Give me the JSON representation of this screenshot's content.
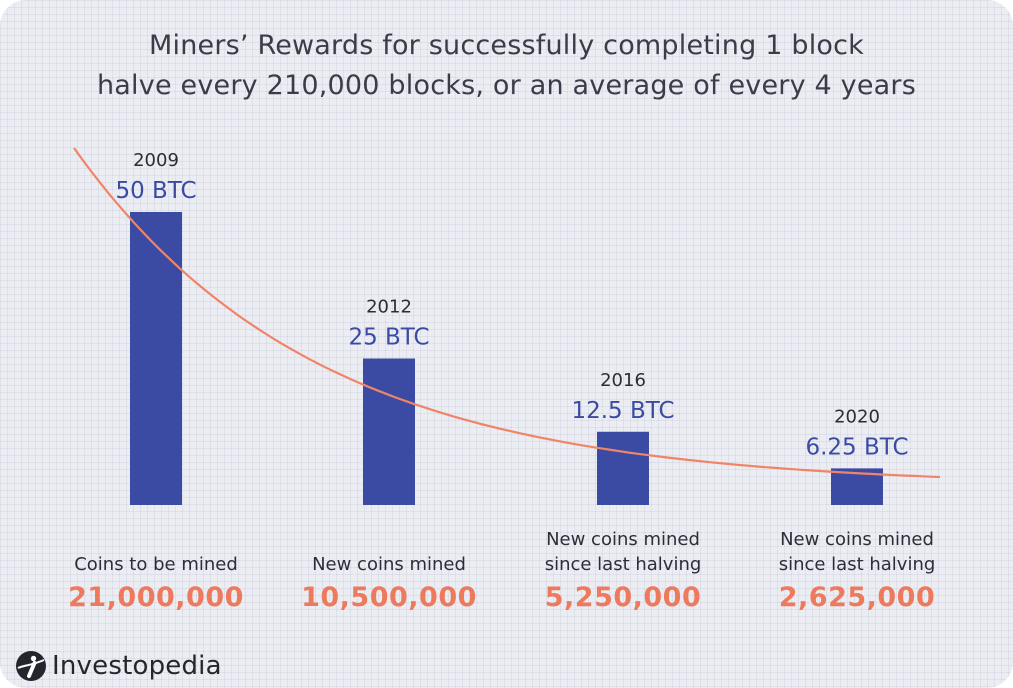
{
  "title_lines": [
    "Miners’ Rewards for successfully completing 1 block",
    "halve every 210,000 blocks, or an average of every 4 years"
  ],
  "colors": {
    "bar": "#3b4aa3",
    "curve": "#f08466",
    "count": "#ee7a5e"
  },
  "chart_data": {
    "type": "bar",
    "title": "Miners’ Rewards for successfully completing 1 block halve every 210,000 blocks, or an average of every 4 years",
    "categories": [
      "2009",
      "2012",
      "2016",
      "2020"
    ],
    "values": [
      50,
      25,
      12.5,
      6.25
    ],
    "value_labels": [
      "50 BTC",
      "25 BTC",
      "12.5 BTC",
      "6.25 BTC"
    ],
    "unit": "BTC",
    "descriptions": [
      [
        "Coins to be mined"
      ],
      [
        "New coins mined"
      ],
      [
        "New coins mined",
        "since last halving"
      ],
      [
        "New coins mined",
        "since last halving"
      ]
    ],
    "counts": [
      "21,000,000",
      "10,500,000",
      "5,250,000",
      "2,625,000"
    ],
    "ylim": [
      0,
      50
    ],
    "trend_curve": true,
    "grid": false,
    "legend": "none"
  },
  "brand": {
    "name": "Investopedia",
    "icon": "investopedia-logo-icon"
  }
}
